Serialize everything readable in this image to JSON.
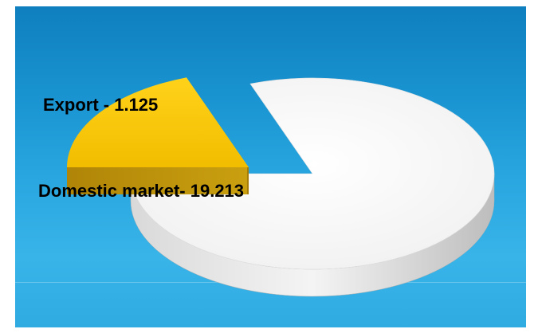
{
  "chart_data": {
    "type": "pie",
    "style": "3d-exploded",
    "slices": [
      {
        "label": "Export - 1.125",
        "name": "Export",
        "value": 1.125,
        "color": "#f6c200"
      },
      {
        "label": "Domestic market- 19.213",
        "name": "Domestic market",
        "value": 19.213,
        "color": "#ffffff"
      }
    ]
  },
  "colors": {
    "background_top": "#0f7fbf",
    "background_bottom": "#38b4e9",
    "export_top": "#f6c200",
    "export_side": "#b8900a",
    "domestic_top": "#ffffff",
    "domestic_side": "#c8c8c8"
  }
}
